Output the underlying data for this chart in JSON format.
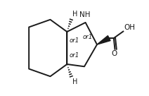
{
  "bg_color": "#ffffff",
  "line_color": "#1a1a1a",
  "lw": 1.4,
  "font_size": 7.5,
  "font_size_or1": 6.2,
  "font_size_H": 7.0,
  "figsize": [
    2.12,
    1.36
  ],
  "dpi": 100,
  "NH": "NH",
  "H": "H",
  "OH": "OH",
  "O": "O",
  "or1": "or1"
}
